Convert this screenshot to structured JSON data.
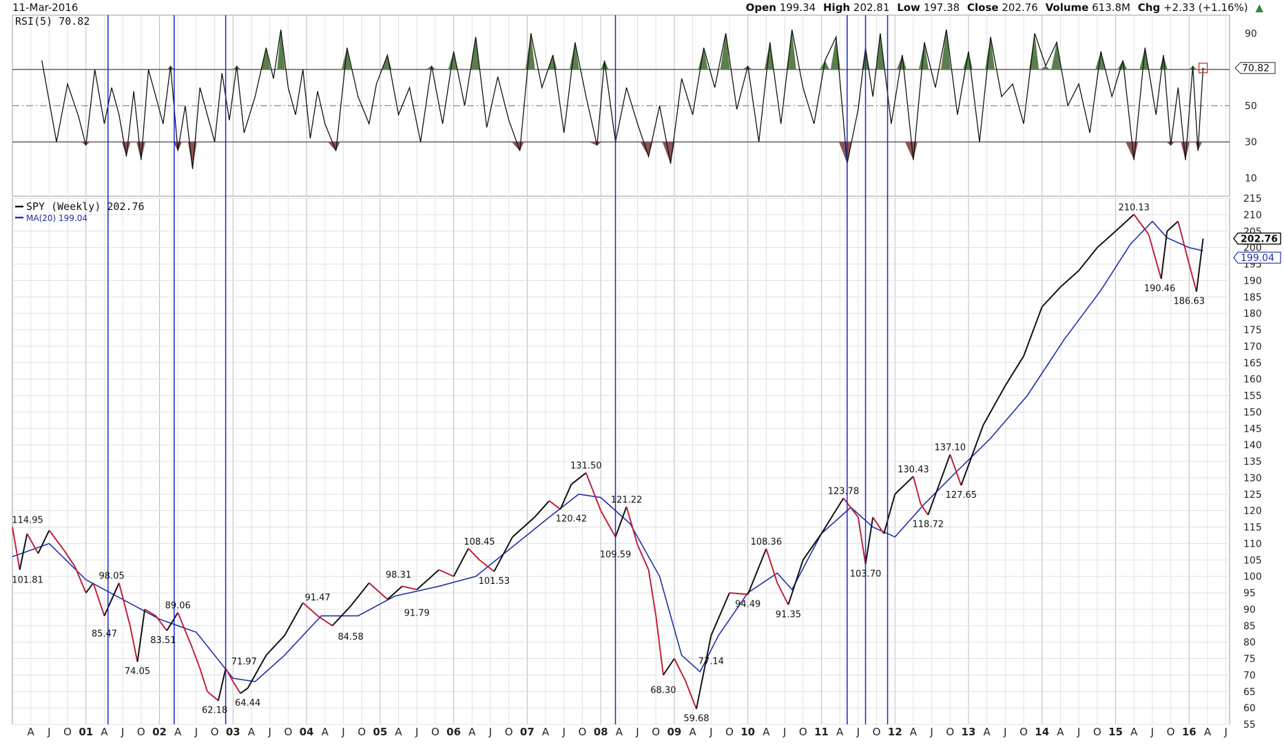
{
  "header": {
    "date": "11-Mar-2016",
    "open_label": "Open",
    "open": "199.34",
    "high_label": "High",
    "high": "202.81",
    "low_label": "Low",
    "low": "197.38",
    "close_label": "Close",
    "close": "202.76",
    "volume_label": "Volume",
    "volume": "613.8M",
    "chg_label": "Chg",
    "chg": "+2.33 (+1.16%)"
  },
  "colors": {
    "price_up": "#111111",
    "price_down": "#c0203a",
    "ma": "#1e2fa8",
    "rsi_overbought_fill": "#5a7f4c",
    "rsi_oversold_fill": "#8a5454",
    "marker_line": "#1a22c8",
    "grid": "#cccccc"
  },
  "chart_data": [
    {
      "type": "line",
      "panel": "RSI",
      "legend": "RSI(5) 70.82",
      "last_value_label": "70.82",
      "y_ticks": [
        10,
        30,
        50,
        90
      ],
      "ylim": [
        0,
        100
      ],
      "reference_lines": [
        30,
        50,
        70
      ],
      "grid": true,
      "series": [
        {
          "name": "RSI(5)",
          "x": [
            2000.4,
            2000.6,
            2000.75,
            2000.9,
            2001.0,
            2001.12,
            2001.25,
            2001.35,
            2001.45,
            2001.55,
            2001.65,
            2001.75,
            2001.85,
            2001.95,
            2002.05,
            2002.15,
            2002.25,
            2002.35,
            2002.45,
            2002.55,
            2002.65,
            2002.75,
            2002.85,
            2002.95,
            2003.05,
            2003.15,
            2003.3,
            2003.45,
            2003.55,
            2003.65,
            2003.75,
            2003.85,
            2003.95,
            2004.05,
            2004.15,
            2004.25,
            2004.4,
            2004.55,
            2004.7,
            2004.85,
            2004.95,
            2005.1,
            2005.25,
            2005.4,
            2005.55,
            2005.7,
            2005.85,
            2006.0,
            2006.15,
            2006.3,
            2006.45,
            2006.6,
            2006.75,
            2006.9,
            2007.05,
            2007.2,
            2007.35,
            2007.5,
            2007.65,
            2007.8,
            2007.95,
            2008.05,
            2008.2,
            2008.35,
            2008.5,
            2008.65,
            2008.8,
            2008.95,
            2009.1,
            2009.25,
            2009.4,
            2009.55,
            2009.7,
            2009.85,
            2010.0,
            2010.15,
            2010.3,
            2010.45,
            2010.6,
            2010.75,
            2010.9,
            2011.05,
            2011.2,
            2011.35,
            2011.5,
            2011.6,
            2011.7,
            2011.8,
            2011.95,
            2012.1,
            2012.25,
            2012.4,
            2012.55,
            2012.7,
            2012.85,
            2013.0,
            2013.15,
            2013.3,
            2013.45,
            2013.6,
            2013.75,
            2013.9,
            2014.05,
            2014.2,
            2014.35,
            2014.5,
            2014.65,
            2014.8,
            2014.95,
            2015.1,
            2015.25,
            2015.4,
            2015.55,
            2015.65,
            2015.75,
            2015.85,
            2015.95,
            2016.05,
            2016.12,
            2016.19
          ],
          "values": [
            75,
            30,
            62,
            44,
            28,
            70,
            40,
            60,
            45,
            22,
            58,
            20,
            70,
            55,
            40,
            72,
            25,
            50,
            15,
            60,
            45,
            30,
            68,
            42,
            72,
            35,
            55,
            82,
            65,
            92,
            60,
            45,
            70,
            32,
            58,
            40,
            25,
            82,
            55,
            40,
            62,
            78,
            45,
            60,
            30,
            72,
            40,
            80,
            50,
            88,
            38,
            66,
            42,
            25,
            90,
            60,
            78,
            35,
            85,
            55,
            28,
            75,
            30,
            60,
            40,
            22,
            50,
            18,
            65,
            45,
            82,
            60,
            90,
            48,
            72,
            30,
            85,
            40,
            92,
            60,
            40,
            75,
            88,
            18,
            48,
            82,
            55,
            90,
            40,
            78,
            20,
            85,
            60,
            92,
            45,
            80,
            30,
            88,
            55,
            62,
            40,
            90,
            72,
            85,
            50,
            62,
            35,
            80,
            55,
            75,
            20,
            82,
            45,
            78,
            28,
            60,
            20,
            72,
            25,
            70.82
          ]
        }
      ]
    },
    {
      "type": "line",
      "panel": "Price",
      "title": "SPY (Weekly) 202.76",
      "ma_legend": "MA(20) 199.04",
      "last_price_label": "202.76",
      "last_ma_label": "199.04",
      "ylim": [
        55,
        215
      ],
      "y_ticks": [
        55,
        60,
        65,
        70,
        75,
        80,
        85,
        90,
        95,
        100,
        105,
        110,
        115,
        120,
        125,
        130,
        135,
        140,
        145,
        150,
        155,
        160,
        165,
        170,
        175,
        180,
        185,
        190,
        195,
        200,
        205,
        210,
        215
      ],
      "x_tick_labels": [
        "A",
        "J",
        "O",
        "01",
        "A",
        "J",
        "O",
        "02",
        "A",
        "J",
        "O",
        "03",
        "A",
        "J",
        "O",
        "04",
        "A",
        "J",
        "O",
        "05",
        "A",
        "J",
        "O",
        "06",
        "A",
        "J",
        "O",
        "07",
        "A",
        "J",
        "O",
        "08",
        "A",
        "J",
        "O",
        "09",
        "A",
        "J",
        "O",
        "10",
        "A",
        "J",
        "O",
        "11",
        "A",
        "J",
        "O",
        "12",
        "A",
        "J",
        "O",
        "13",
        "A",
        "J",
        "O",
        "14",
        "A",
        "J",
        "O",
        "15",
        "A",
        "J",
        "O",
        "16",
        "A",
        "J"
      ],
      "grid": true,
      "series": [
        {
          "name": "SPY (Weekly)",
          "x": [
            2000.0,
            2000.1,
            2000.2,
            2000.35,
            2000.5,
            2000.7,
            2000.85,
            2001.0,
            2001.1,
            2001.25,
            2001.45,
            2001.6,
            2001.7,
            2001.8,
            2001.95,
            2002.1,
            2002.25,
            2002.45,
            2002.55,
            2002.65,
            2002.8,
            2002.9,
            2003.0,
            2003.1,
            2003.2,
            2003.45,
            2003.7,
            2003.95,
            2004.15,
            2004.35,
            2004.6,
            2004.85,
            2005.1,
            2005.3,
            2005.5,
            2005.8,
            2006.0,
            2006.2,
            2006.35,
            2006.55,
            2006.8,
            2007.1,
            2007.3,
            2007.45,
            2007.6,
            2007.8,
            2008.0,
            2008.2,
            2008.35,
            2008.5,
            2008.65,
            2008.75,
            2008.85,
            2009.0,
            2009.15,
            2009.3,
            2009.5,
            2009.75,
            2010.0,
            2010.25,
            2010.4,
            2010.55,
            2010.75,
            2011.0,
            2011.3,
            2011.5,
            2011.6,
            2011.7,
            2011.85,
            2012.0,
            2012.25,
            2012.35,
            2012.45,
            2012.75,
            2012.9,
            2013.2,
            2013.5,
            2013.75,
            2014.0,
            2014.25,
            2014.5,
            2014.75,
            2014.85,
            2015.0,
            2015.25,
            2015.45,
            2015.62,
            2015.7,
            2015.85,
            2016.0,
            2016.1,
            2016.19
          ],
          "values": [
            115,
            102,
            113,
            107,
            114,
            108,
            103,
            95,
            98,
            88,
            98,
            85,
            74,
            90,
            88,
            83.5,
            89,
            78,
            72,
            65,
            62.2,
            72,
            68,
            64.4,
            66,
            76,
            82,
            92,
            88,
            85,
            91,
            98,
            93,
            97,
            96,
            102,
            100,
            108.5,
            105,
            101.5,
            112,
            118,
            123,
            120.4,
            128,
            131.5,
            120,
            112,
            121.2,
            109.6,
            102,
            88,
            70,
            75,
            68.3,
            59.7,
            82,
            95,
            94.5,
            108.4,
            98,
            91.4,
            105,
            113,
            123.8,
            118,
            103.7,
            118,
            113,
            125,
            130.4,
            122,
            118.7,
            137.1,
            127.7,
            146,
            158,
            167,
            182,
            188,
            193,
            200,
            202,
            205,
            210.1,
            204,
            190.5,
            205,
            208,
            195,
            186.6,
            202.76
          ]
        },
        {
          "name": "MA(20)",
          "x": [
            2000.0,
            2000.5,
            2001.0,
            2001.5,
            2002.0,
            2002.5,
            2003.0,
            2003.3,
            2003.7,
            2004.2,
            2004.7,
            2005.2,
            2005.8,
            2006.3,
            2006.8,
            2007.3,
            2007.7,
            2008.0,
            2008.4,
            2008.8,
            2009.1,
            2009.35,
            2009.6,
            2010.0,
            2010.4,
            2010.6,
            2011.0,
            2011.4,
            2011.7,
            2012.0,
            2012.4,
            2012.8,
            2013.3,
            2013.8,
            2014.3,
            2014.8,
            2015.2,
            2015.5,
            2015.7,
            2016.0,
            2016.19
          ],
          "values": [
            106,
            110,
            99,
            93,
            87,
            83,
            69,
            68,
            76,
            88,
            88,
            94,
            97,
            100,
            109,
            118,
            125,
            124,
            116,
            100,
            76,
            71,
            82,
            95,
            101,
            96,
            113,
            121,
            115,
            112,
            122,
            131,
            142,
            155,
            172,
            187,
            201,
            208,
            203,
            200,
            199.04
          ]
        }
      ],
      "price_labels": [
        {
          "x": 2000.0,
          "y": 114.95,
          "text": "114.95"
        },
        {
          "x": 2000.0,
          "y": 101.81,
          "text": "101.81"
        },
        {
          "x": 2001.35,
          "y": 98.05,
          "text": "98.05"
        },
        {
          "x": 2001.25,
          "y": 85.47,
          "text": "85.47"
        },
        {
          "x": 2001.7,
          "y": 74.05,
          "text": "74.05"
        },
        {
          "x": 2002.25,
          "y": 89.06,
          "text": "89.06"
        },
        {
          "x": 2002.05,
          "y": 83.51,
          "text": "83.51"
        },
        {
          "x": 2002.75,
          "y": 62.18,
          "text": "62.18"
        },
        {
          "x": 2003.15,
          "y": 71.97,
          "text": "71.97"
        },
        {
          "x": 2003.2,
          "y": 64.44,
          "text": "64.44"
        },
        {
          "x": 2004.15,
          "y": 91.47,
          "text": "91.47"
        },
        {
          "x": 2004.6,
          "y": 84.58,
          "text": "84.58"
        },
        {
          "x": 2005.25,
          "y": 98.31,
          "text": "98.31"
        },
        {
          "x": 2005.5,
          "y": 91.79,
          "text": "91.79"
        },
        {
          "x": 2006.35,
          "y": 108.45,
          "text": "108.45"
        },
        {
          "x": 2006.55,
          "y": 101.53,
          "text": "101.53"
        },
        {
          "x": 2007.8,
          "y": 131.5,
          "text": "131.50"
        },
        {
          "x": 2007.6,
          "y": 120.42,
          "text": "120.42"
        },
        {
          "x": 2008.35,
          "y": 121.22,
          "text": "121.22"
        },
        {
          "x": 2008.2,
          "y": 109.59,
          "text": "109.59"
        },
        {
          "x": 2008.85,
          "y": 68.3,
          "text": "68.30"
        },
        {
          "x": 2009.3,
          "y": 59.68,
          "text": "59.68"
        },
        {
          "x": 2009.5,
          "y": 77.14,
          "text": "77.14"
        },
        {
          "x": 2010.25,
          "y": 108.36,
          "text": "108.36"
        },
        {
          "x": 2010.0,
          "y": 94.49,
          "text": "94.49"
        },
        {
          "x": 2010.55,
          "y": 91.35,
          "text": "91.35"
        },
        {
          "x": 2011.3,
          "y": 123.78,
          "text": "123.78"
        },
        {
          "x": 2011.6,
          "y": 103.7,
          "text": "103.70"
        },
        {
          "x": 2012.25,
          "y": 130.43,
          "text": "130.43"
        },
        {
          "x": 2012.45,
          "y": 118.72,
          "text": "118.72"
        },
        {
          "x": 2012.75,
          "y": 137.1,
          "text": "137.10"
        },
        {
          "x": 2012.9,
          "y": 127.65,
          "text": "127.65"
        },
        {
          "x": 2015.25,
          "y": 210.13,
          "text": "210.13"
        },
        {
          "x": 2015.6,
          "y": 190.46,
          "text": "190.46"
        },
        {
          "x": 2016.0,
          "y": 186.63,
          "text": "186.63"
        }
      ],
      "vertical_markers_x": [
        2001.3,
        2002.2,
        2002.9,
        2008.2,
        2011.35,
        2011.6,
        2011.9
      ]
    }
  ]
}
